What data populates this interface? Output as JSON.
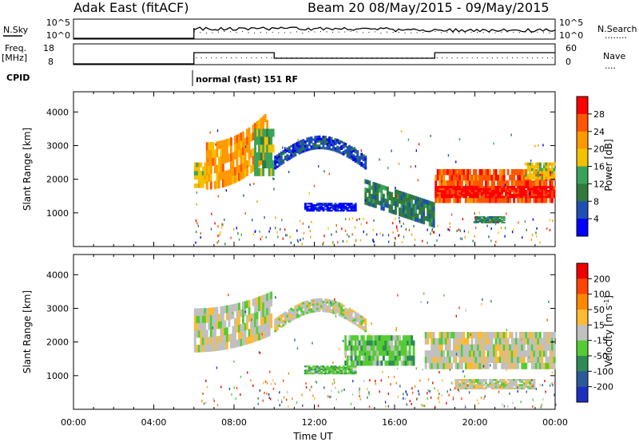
{
  "header": {
    "station": "Adak East (fitACF)",
    "beam_date": "Beam 20 08/May/2015 - 09/May/2015"
  },
  "nsky_panel": {
    "left_label": "N.Sky",
    "left_ticks": [
      "10^5",
      "10^0"
    ],
    "right_ticks": [
      "10^5",
      "10^0"
    ],
    "right_label": "N.Search",
    "legend_dots": "........"
  },
  "freq_panel": {
    "left_label_1": "Freq.",
    "left_label_2": "[MHz]",
    "left_ticks": [
      "18",
      "8"
    ],
    "right_ticks": [
      "60",
      "0"
    ],
    "right_label": "Nave",
    "legend_dots": "...."
  },
  "cpid": {
    "label": "CPID",
    "mode_text": "normal (fast) 151 RF"
  },
  "colors": {
    "power": [
      "#0000ff",
      "#1e4fb4",
      "#2f7a3c",
      "#3aa35a",
      "#f2c200",
      "#ff9900",
      "#ff5500",
      "#ff0000"
    ],
    "velocity": [
      "#1a2fbf",
      "#2a5a9a",
      "#2e8b57",
      "#55cc33",
      "#c0c0c0",
      "#ffbb33",
      "#ff8800",
      "#ff4400",
      "#ee0000"
    ],
    "ground_scatter": "#c0c0c0"
  },
  "chart_data": [
    {
      "type": "heatmap",
      "name": "power",
      "ylabel": "Slant Range [km]",
      "y_ticks": [
        "4000",
        "3000",
        "2000",
        "1000"
      ],
      "ylim_km": [
        0,
        4600
      ],
      "colorbar_label": "Power [dB]",
      "colorbar_ticks": [
        "28",
        "24",
        "20",
        "16",
        "12",
        "8",
        "4"
      ],
      "bands": [
        {
          "t0": 6.0,
          "t1": 6.6,
          "r0": 1750,
          "r1": 2500,
          "level": 4
        },
        {
          "t0": 6.6,
          "t1": 9.6,
          "r0": 1700,
          "r1": 3100,
          "level": 5,
          "rise": 900
        },
        {
          "t0": 9.0,
          "t1": 9.9,
          "r0": 2100,
          "r1": 3500,
          "level": 3
        },
        {
          "t0": 10.0,
          "t1": 14.5,
          "r0": 2300,
          "r1": 2700,
          "level": 1,
          "arc": 600
        },
        {
          "t0": 14.5,
          "t1": 18.0,
          "r0": 1250,
          "r1": 2000,
          "level": 2,
          "fall": 700
        },
        {
          "t0": 11.5,
          "t1": 14.0,
          "r0": 1050,
          "r1": 1300,
          "level": 0
        },
        {
          "t0": 18.0,
          "t1": 24.0,
          "r0": 1300,
          "r1": 2300,
          "level": 6
        },
        {
          "t0": 18.0,
          "t1": 24.0,
          "r0": 1450,
          "r1": 1800,
          "level": 7
        },
        {
          "t0": 20.0,
          "t1": 21.5,
          "r0": 700,
          "r1": 900,
          "level": 2
        },
        {
          "t0": 22.5,
          "t1": 24.0,
          "r0": 2000,
          "r1": 2500,
          "level": 4
        }
      ]
    },
    {
      "type": "heatmap",
      "name": "velocity",
      "xlabel": "Time UT",
      "ylabel": "Slant Range [km]",
      "x_ticks": [
        "00:00",
        "04:00",
        "08:00",
        "12:00",
        "16:00",
        "20:00",
        "00:00"
      ],
      "y_ticks": [
        "4000",
        "3000",
        "2000",
        "1000"
      ],
      "xlim_hours": [
        0,
        24
      ],
      "ylim_km": [
        0,
        4600
      ],
      "colorbar_label": "Velocity [m s",
      "colorbar_label_sup": "-1",
      "colorbar_ticks": [
        "200",
        "100",
        "50",
        "15",
        "-15",
        "-50",
        "-100",
        "-200"
      ],
      "bands": [
        {
          "t0": 6.0,
          "t1": 9.8,
          "r0": 1700,
          "r1": 3000,
          "level": 4,
          "rise": 500
        },
        {
          "t0": 10.0,
          "t1": 14.5,
          "r0": 2300,
          "r1": 2700,
          "level": 4,
          "arc": 600
        },
        {
          "t0": 13.5,
          "t1": 17.0,
          "r0": 1300,
          "r1": 2200,
          "level": 3
        },
        {
          "t0": 11.5,
          "t1": 14.0,
          "r0": 1050,
          "r1": 1300,
          "level": 3
        },
        {
          "t0": 17.5,
          "t1": 24.0,
          "r0": 1200,
          "r1": 2300,
          "level": 4
        },
        {
          "t0": 19.0,
          "t1": 23.0,
          "r0": 600,
          "r1": 900,
          "level": 4
        }
      ]
    }
  ]
}
